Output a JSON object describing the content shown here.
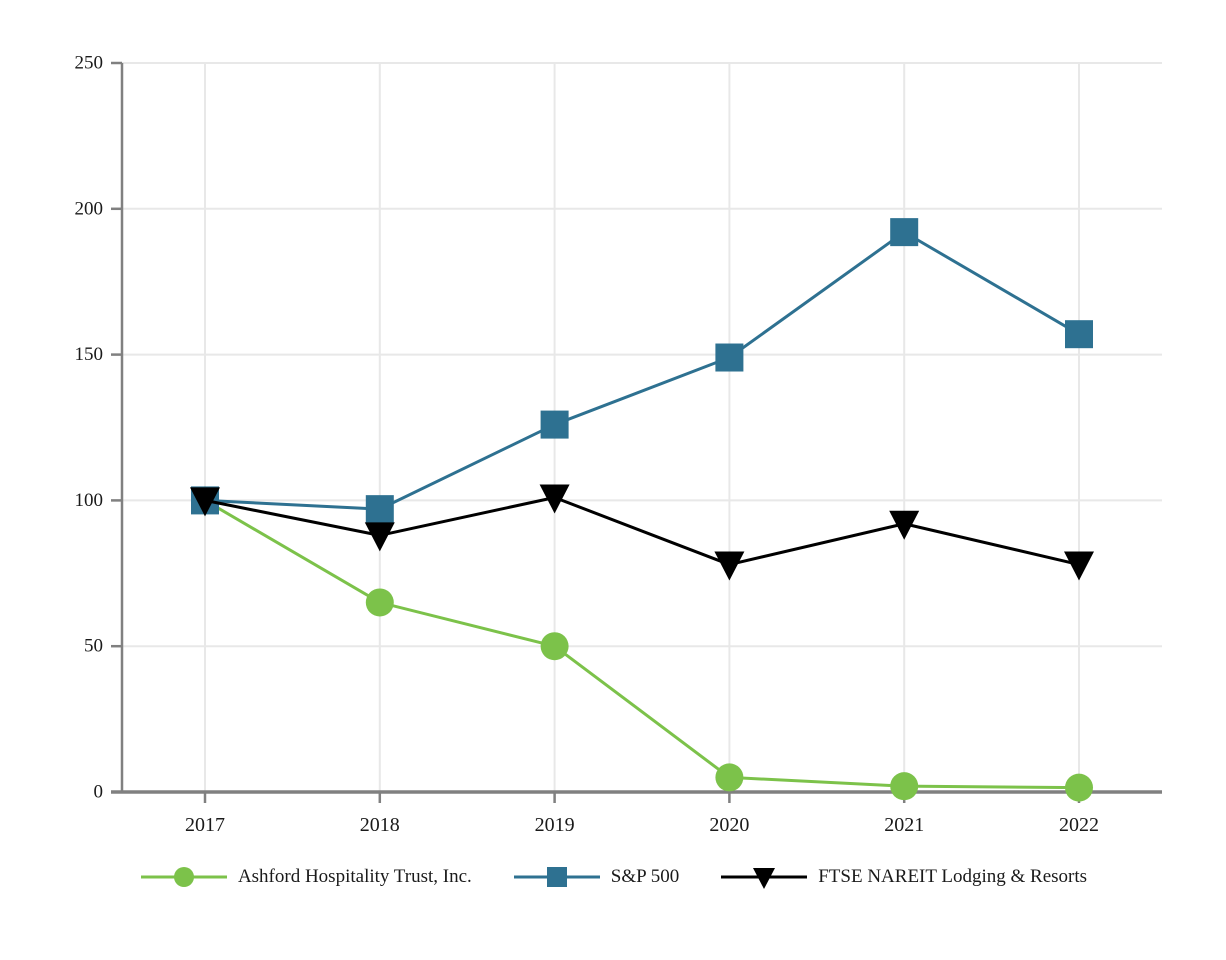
{
  "chart_data": {
    "type": "line",
    "title": "",
    "xlabel": "",
    "ylabel": "",
    "categories": [
      "2017",
      "2018",
      "2019",
      "2020",
      "2021",
      "2022"
    ],
    "series": [
      {
        "name": "Ashford Hospitality Trust, Inc.",
        "marker": "circle",
        "color": "#7CC24A",
        "values": [
          100,
          65,
          50,
          5,
          2,
          1.5
        ]
      },
      {
        "name": "S&P 500",
        "marker": "square",
        "color": "#2E7191",
        "values": [
          100,
          97,
          126,
          149,
          192,
          157
        ]
      },
      {
        "name": "FTSE NAREIT Lodging & Resorts",
        "marker": "triangle-down",
        "color": "#000000",
        "values": [
          100,
          88,
          101,
          78,
          92,
          78
        ]
      }
    ],
    "ylim": [
      0,
      250
    ],
    "yticks": [
      0,
      50,
      100,
      150,
      200,
      250
    ],
    "grid": true,
    "legend_position": "bottom"
  },
  "styles": {
    "background_color": "#ffffff",
    "grid_color": "#e8e8e8",
    "axis_color": "#808080",
    "tick_label_color": "#1a1a1a"
  }
}
